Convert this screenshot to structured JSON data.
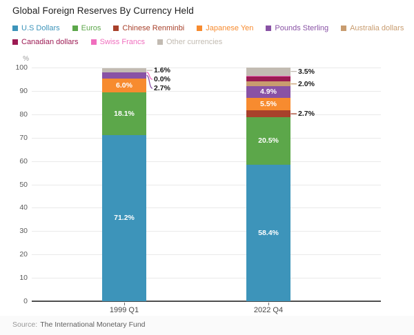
{
  "footer": {
    "source_prefix": "Source:",
    "source_name": "The International Monetary Fund"
  },
  "chart_data": {
    "type": "bar",
    "subtype": "stacked-percent-column",
    "title": "Global Foreign Reserves By Currency Held",
    "unit_label": "%",
    "categories": [
      "1999 Q1",
      "2022 Q4"
    ],
    "ylim": [
      0,
      100
    ],
    "yticks": [
      0,
      10,
      20,
      30,
      40,
      50,
      60,
      70,
      80,
      90,
      100
    ],
    "grid": true,
    "legend_position": "top",
    "legend_rows": [
      6,
      3
    ],
    "axis_line_color": "#4d4d4d",
    "gridline_color": "#e9e9e9",
    "series": [
      {
        "name": "U.S Dollars",
        "color": "#3D94BA",
        "values": [
          71.2,
          58.4
        ]
      },
      {
        "name": "Euros",
        "color": "#5CA74A",
        "values": [
          18.1,
          20.5
        ]
      },
      {
        "name": "Chinese Renminbi",
        "color": "#A8412B",
        "values": [
          0.0,
          2.7
        ]
      },
      {
        "name": "Japanese Yen",
        "color": "#F78B2F",
        "values": [
          6.0,
          5.5
        ]
      },
      {
        "name": "Pounds Sterling",
        "color": "#8952A5",
        "values": [
          2.7,
          4.9
        ]
      },
      {
        "name": "Australia dollars",
        "color": "#C89C6F",
        "values": [
          0.0,
          2.0
        ]
      },
      {
        "name": "Canadian dollars",
        "color": "#9C1A53",
        "values": [
          0.0,
          2.4
        ]
      },
      {
        "name": "Swiss Francs",
        "color": "#F06EBE",
        "values": [
          0.0,
          0.2
        ]
      },
      {
        "name": "Other currencies",
        "color": "#C2BBB2",
        "values": [
          1.6,
          3.5
        ]
      }
    ],
    "data_labels": [
      {
        "category": "1999 Q1",
        "series": "U.S Dollars",
        "text": "71.2%",
        "placement": "inside"
      },
      {
        "category": "1999 Q1",
        "series": "Euros",
        "text": "18.1%",
        "placement": "inside"
      },
      {
        "category": "1999 Q1",
        "series": "Japanese Yen",
        "text": "6.0%",
        "placement": "inside"
      },
      {
        "category": "1999 Q1",
        "series": "Other currencies",
        "text": "1.6%",
        "placement": "callout"
      },
      {
        "category": "1999 Q1",
        "series": "Swiss Francs",
        "text": "0.0%",
        "placement": "callout"
      },
      {
        "category": "1999 Q1",
        "series": "Pounds Sterling",
        "text": "2.7%",
        "placement": "callout"
      },
      {
        "category": "2022 Q4",
        "series": "U.S Dollars",
        "text": "58.4%",
        "placement": "inside"
      },
      {
        "category": "2022 Q4",
        "series": "Euros",
        "text": "20.5%",
        "placement": "inside"
      },
      {
        "category": "2022 Q4",
        "series": "Japanese Yen",
        "text": "5.5%",
        "placement": "inside"
      },
      {
        "category": "2022 Q4",
        "series": "Pounds Sterling",
        "text": "4.9%",
        "placement": "inside"
      },
      {
        "category": "2022 Q4",
        "series": "Other currencies",
        "text": "3.5%",
        "placement": "callout"
      },
      {
        "category": "2022 Q4",
        "series": "Australia dollars",
        "text": "2.0%",
        "placement": "callout"
      },
      {
        "category": "2022 Q4",
        "series": "Chinese Renminbi",
        "text": "2.7%",
        "placement": "callout"
      }
    ]
  }
}
